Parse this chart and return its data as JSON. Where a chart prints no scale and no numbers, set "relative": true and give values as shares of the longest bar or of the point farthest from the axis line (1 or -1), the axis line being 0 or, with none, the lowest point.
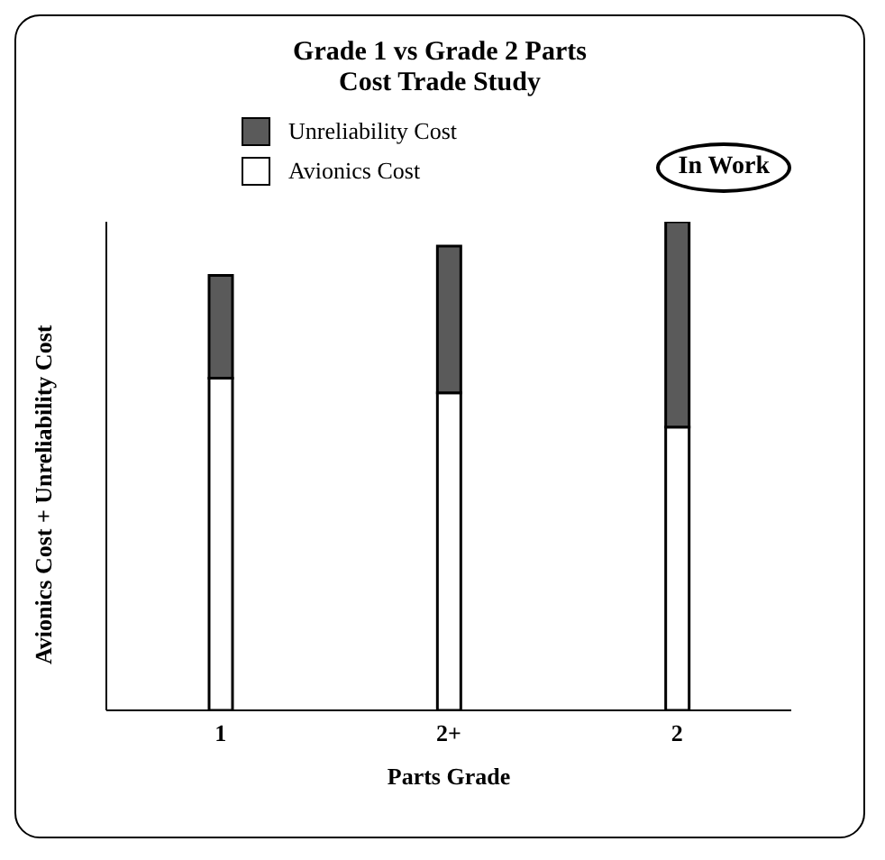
{
  "chart_data": {
    "type": "bar",
    "title": "Grade 1 vs Grade 2 Parts\nCost Trade Study",
    "xlabel": "Parts Grade",
    "ylabel": "Avionics Cost + Unreliability Cost",
    "categories": [
      "1",
      "2+",
      "2"
    ],
    "stacked": true,
    "relative": true,
    "legend": "top",
    "annotations": [
      "In Work"
    ],
    "series": [
      {
        "name": "Avionics Cost",
        "color": "#ffffff",
        "values": [
          0.68,
          0.65,
          0.58
        ]
      },
      {
        "name": "Unreliability Cost",
        "color": "#5a5a5a",
        "values": [
          0.21,
          0.3,
          0.42
        ]
      }
    ]
  }
}
